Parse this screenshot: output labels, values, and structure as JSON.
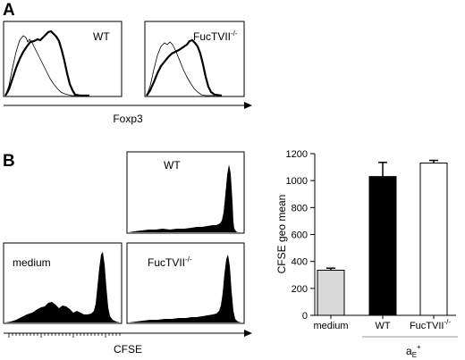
{
  "panel_a": {
    "letter": "A",
    "plot_wt_label": "WT",
    "plot_ko_label_main": "FucTVII",
    "plot_ko_label_sup": "-/-",
    "axis_label": "Foxp3"
  },
  "panel_b": {
    "letter": "B",
    "hist_wt_label": "WT",
    "hist_medium_label": "medium",
    "hist_ko_label_main": "FucTVII",
    "hist_ko_label_sup": "-/-",
    "axis_label": "CFSE",
    "group_label_main": "a",
    "group_label_sub": "E",
    "group_label_sup": "+"
  },
  "chart_data": {
    "type": "bar",
    "ylabel": "CFSE geo mean",
    "xlabel": "",
    "ylim": [
      0,
      1200
    ],
    "yticks": [
      0,
      200,
      400,
      600,
      800,
      1000,
      1200
    ],
    "categories": [
      "medium",
      "WT",
      "FucTVII-/-"
    ],
    "category_labels": [
      {
        "main": "medium",
        "sup": ""
      },
      {
        "main": "WT",
        "sup": ""
      },
      {
        "main": "FucTVII",
        "sup": "-/-"
      }
    ],
    "values": [
      335,
      1030,
      1130
    ],
    "errors": [
      15,
      105,
      20
    ],
    "fills": [
      "#d9d9d9",
      "#000000",
      "#ffffff"
    ],
    "grid": false
  }
}
